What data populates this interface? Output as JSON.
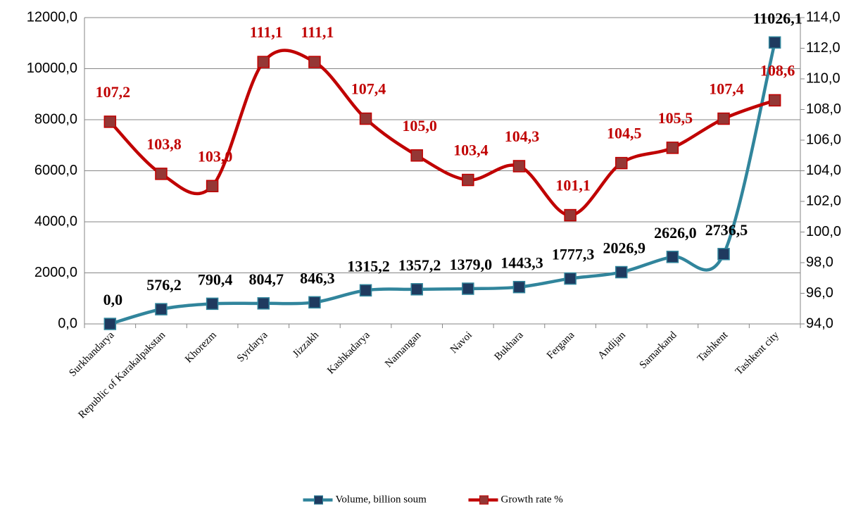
{
  "chart_data": {
    "type": "line",
    "categories": [
      "Surkhandarya",
      "Republic of Karakalpakstan",
      "Khorezm",
      "Syrdarya",
      "Jizzakh",
      "Kashkadarya",
      "Namangan",
      "Navoi",
      "Bukhara",
      "Fergana",
      "Andijan",
      "Samarkand",
      "Tashkent",
      "Tashkent city"
    ],
    "series": [
      {
        "name": "Volume, billion soum",
        "color": "#31859c",
        "marker_color": "#1f3a5f",
        "axis": "y",
        "values": [
          0.0,
          576.2,
          790.4,
          804.7,
          846.3,
          1315.2,
          1357.2,
          1379.0,
          1443.3,
          1777.3,
          2026.9,
          2626.0,
          2736.5,
          11026.1
        ],
        "value_labels": [
          "0,0",
          "576,2",
          "790,4",
          "804,7",
          "846,3",
          "1315,2",
          "1357,2",
          "1379,0",
          "1443,3",
          "1777,3",
          "2026,9",
          "2626,0",
          "2736,5",
          "11026,1"
        ]
      },
      {
        "name": "Growth rate %",
        "color": "#c00000",
        "marker_color": "#953735",
        "axis": "y2",
        "values": [
          107.2,
          103.8,
          103.0,
          111.1,
          111.1,
          107.4,
          105.0,
          103.4,
          104.3,
          101.1,
          104.5,
          105.5,
          107.4,
          108.6
        ],
        "value_labels": [
          "107,2",
          "103,8",
          "103,0",
          "111,1",
          "111,1",
          "107,4",
          "105,0",
          "103,4",
          "104,3",
          "101,1",
          "104,5",
          "105,5",
          "107,4",
          "108,6"
        ]
      }
    ],
    "ylim": [
      0,
      12000
    ],
    "yticks": [
      {
        "value": 0,
        "label": "0,0"
      },
      {
        "value": 2000,
        "label": "2000,0"
      },
      {
        "value": 4000,
        "label": "4000,0"
      },
      {
        "value": 6000,
        "label": "6000,0"
      },
      {
        "value": 8000,
        "label": "8000,0"
      },
      {
        "value": 10000,
        "label": "10000,0"
      },
      {
        "value": 12000,
        "label": "12000,0"
      }
    ],
    "y2lim": [
      94,
      114
    ],
    "y2ticks": [
      {
        "value": 94,
        "label": "94,0"
      },
      {
        "value": 96,
        "label": "96,0"
      },
      {
        "value": 98,
        "label": "98,0"
      },
      {
        "value": 100,
        "label": "100,0"
      },
      {
        "value": 102,
        "label": "102,0"
      },
      {
        "value": 104,
        "label": "104,0"
      },
      {
        "value": 106,
        "label": "106,0"
      },
      {
        "value": 108,
        "label": "108,0"
      },
      {
        "value": 110,
        "label": "110,0"
      },
      {
        "value": 112,
        "label": "112,0"
      },
      {
        "value": 114,
        "label": "114,0"
      }
    ],
    "grid": true,
    "smooth": true,
    "legend": "bottom"
  }
}
